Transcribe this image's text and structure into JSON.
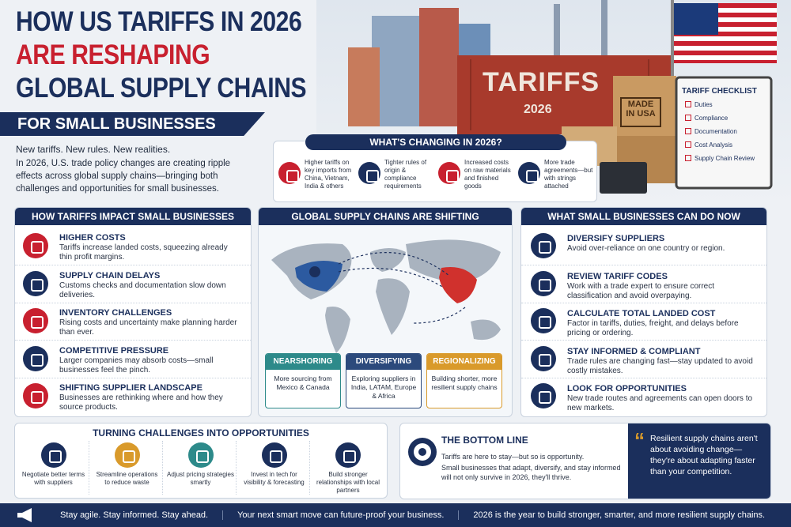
{
  "header": {
    "title_line1": "HOW US TARIFFS IN 2026",
    "title_line2": "ARE RESHAPING",
    "title_line3": "GLOBAL SUPPLY CHAINS",
    "banner": "FOR SMALL BUSINESSES",
    "tagline": "New tariffs. New rules. New realities.",
    "intro": "In 2026, U.S. trade policy changes are creating ripple effects across global supply chains—bringing both challenges and opportunities for small businesses."
  },
  "photo": {
    "container_label": "TARIFFS",
    "container_year": "2026",
    "box_label": "MADE IN USA",
    "checklist": {
      "title": "TARIFF CHECKLIST",
      "items": [
        "Duties",
        "Compliance",
        "Documentation",
        "Cost Analysis",
        "Supply Chain Review"
      ]
    }
  },
  "changing": {
    "title": "WHAT'S CHANGING IN 2026?",
    "items": [
      "Higher tariffs on key imports from China, Vietnam, India & others",
      "Tighter rules of origin & compliance requirements",
      "Increased costs on raw materials and finished goods",
      "More trade agreements—but with strings attached"
    ]
  },
  "impacts": {
    "title": "HOW TARIFFS IMPACT SMALL BUSINESSES",
    "items": [
      {
        "heading": "HIGHER COSTS",
        "text": "Tariffs increase landed costs, squeezing already thin profit margins."
      },
      {
        "heading": "SUPPLY CHAIN DELAYS",
        "text": "Customs checks and documentation slow down deliveries."
      },
      {
        "heading": "INVENTORY CHALLENGES",
        "text": "Rising costs and uncertainty make planning harder than ever."
      },
      {
        "heading": "COMPETITIVE PRESSURE",
        "text": "Larger companies may absorb costs—small businesses feel the pinch."
      },
      {
        "heading": "SHIFTING SUPPLIER LANDSCAPE",
        "text": "Businesses are rethinking where and how they source products."
      }
    ]
  },
  "global": {
    "title": "GLOBAL SUPPLY CHAINS ARE SHIFTING",
    "cards": [
      {
        "heading": "NEARSHORING",
        "text": "More sourcing from Mexico & Canada"
      },
      {
        "heading": "DIVERSIFYING",
        "text": "Exploring suppliers in India, LATAM, Europe & Africa"
      },
      {
        "heading": "REGIONALIZING",
        "text": "Building shorter, more resilient supply chains"
      }
    ]
  },
  "actions": {
    "title": "WHAT SMALL BUSINESSES CAN DO NOW",
    "items": [
      {
        "heading": "DIVERSIFY SUPPLIERS",
        "text": "Avoid over-reliance on one country or region."
      },
      {
        "heading": "REVIEW TARIFF CODES",
        "text": "Work with a trade expert to ensure correct classification and avoid overpaying."
      },
      {
        "heading": "CALCULATE TOTAL LANDED COST",
        "text": "Factor in tariffs, duties, freight, and delays before pricing or ordering."
      },
      {
        "heading": "STAY INFORMED & COMPLIANT",
        "text": "Trade rules are changing fast—stay updated to avoid costly mistakes."
      },
      {
        "heading": "LOOK FOR OPPORTUNITIES",
        "text": "New trade routes and agreements can open doors to new markets."
      }
    ]
  },
  "opportunities": {
    "title": "TURNING CHALLENGES INTO OPPORTUNITIES",
    "items": [
      "Negotiate better terms with suppliers",
      "Streamline operations to reduce waste",
      "Adjust pricing strategies smartly",
      "Invest in tech for visibility & forecasting",
      "Build stronger relationships with local partners"
    ]
  },
  "bottom_line": {
    "title": "THE BOTTOM LINE",
    "text1": "Tariffs are here to stay—but so is opportunity.",
    "text2": "Small businesses that adapt, diversify, and stay informed will not only survive in 2026, they'll thrive.",
    "quote": "Resilient supply chains aren't about avoiding change—they're about adapting faster than your competition."
  },
  "footer": {
    "items": [
      "Stay agile. Stay informed. Stay ahead.",
      "Your next smart move can future-proof your business.",
      "2026 is the year to build stronger, smarter, and more resilient supply chains."
    ]
  }
}
